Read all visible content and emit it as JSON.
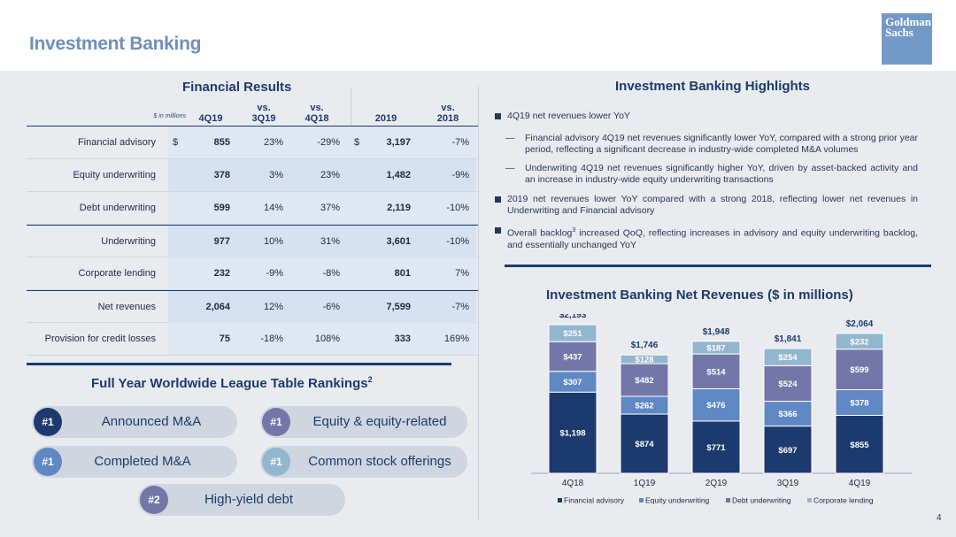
{
  "header": {
    "title": "Investment Banking",
    "logo_text": "Goldman Sachs"
  },
  "financial_results": {
    "title": "Financial Results",
    "columns": {
      "units": "$ in millions",
      "c1": "4Q19",
      "c2": "vs. 3Q19",
      "c3": "vs. 4Q18",
      "c4": "2019",
      "c5": "vs. 2018"
    },
    "rows": [
      {
        "label": "Financial advisory",
        "d1": "$",
        "v1": "855",
        "v2": "23%",
        "v3": "-29%",
        "d4": "$",
        "v4": "3,197",
        "v5": "-7%"
      },
      {
        "label": "Equity underwriting",
        "d1": "",
        "v1": "378",
        "v2": "3%",
        "v3": "23%",
        "d4": "",
        "v4": "1,482",
        "v5": "-9%"
      },
      {
        "label": "Debt underwriting",
        "d1": "",
        "v1": "599",
        "v2": "14%",
        "v3": "37%",
        "d4": "",
        "v4": "2,119",
        "v5": "-10%"
      },
      {
        "label": "Underwriting",
        "d1": "",
        "v1": "977",
        "v2": "10%",
        "v3": "31%",
        "d4": "",
        "v4": "3,601",
        "v5": "-10%"
      },
      {
        "label": "Corporate lending",
        "d1": "",
        "v1": "232",
        "v2": "-9%",
        "v3": "-8%",
        "d4": "",
        "v4": "801",
        "v5": "7%"
      },
      {
        "label": "Net revenues",
        "d1": "",
        "v1": "2,064",
        "v2": "12%",
        "v3": "-6%",
        "d4": "",
        "v4": "7,599",
        "v5": "-7%"
      },
      {
        "label": "Provision for credit losses",
        "d1": "",
        "v1": "75",
        "v2": "-18%",
        "v3": "108%",
        "d4": "",
        "v4": "333",
        "v5": "169%"
      }
    ]
  },
  "rankings": {
    "title": "Full Year Worldwide League Table Rankings",
    "title_sup": "2",
    "items": [
      {
        "rank": "#1",
        "label": "Announced M&A"
      },
      {
        "rank": "#1",
        "label": "Equity & equity-related"
      },
      {
        "rank": "#1",
        "label": "Completed M&A"
      },
      {
        "rank": "#1",
        "label": "Common stock offerings"
      },
      {
        "rank": "#2",
        "label": "High-yield debt"
      }
    ]
  },
  "highlights": {
    "title": "Investment Banking Highlights",
    "b1": "4Q19 net revenues lower YoY",
    "s1": "Financial advisory 4Q19 net revenues significantly lower YoY, compared with a strong prior year period, reflecting a significant decrease in industry-wide completed M&A volumes",
    "s2": "Underwriting 4Q19 net revenues significantly higher YoY, driven by asset-backed activity and an increase in industry-wide equity underwriting transactions",
    "b2": "2019 net revenues lower YoY compared with a strong 2018, reflecting lower net revenues in Underwriting and Financial advisory",
    "b3_pre": "Overall backlog",
    "b3_sup": "3",
    "b3_post": " increased QoQ, reflecting increases in advisory and equity underwriting backlog, and essentially unchanged YoY",
    "dash": "—"
  },
  "chart_data": {
    "type": "bar",
    "stacked": true,
    "title": "Investment Banking Net Revenues ($ in millions)",
    "categories": [
      "4Q18",
      "1Q19",
      "2Q19",
      "3Q19",
      "4Q19"
    ],
    "series": [
      {
        "name": "Financial advisory",
        "color": "#1d3a6e",
        "values": [
          1198,
          874,
          771,
          697,
          855
        ]
      },
      {
        "name": "Equity underwriting",
        "color": "#5f88c4",
        "values": [
          307,
          262,
          476,
          366,
          378
        ]
      },
      {
        "name": "Debt underwriting",
        "color": "#7476a8",
        "values": [
          437,
          482,
          514,
          524,
          599
        ]
      },
      {
        "name": "Corporate lending",
        "color": "#93b6cf",
        "values": [
          251,
          128,
          187,
          254,
          232
        ]
      }
    ],
    "totals": [
      2193,
      1746,
      1948,
      1841,
      2064
    ],
    "value_labels": [
      [
        "$1,198",
        "$307",
        "$437",
        "$251"
      ],
      [
        "$874",
        "$262",
        "$482",
        "$128"
      ],
      [
        "$771",
        "$476",
        "$514",
        "$187"
      ],
      [
        "$697",
        "$366",
        "$524",
        "$254"
      ],
      [
        "$855",
        "$378",
        "$599",
        "$232"
      ]
    ],
    "total_labels": [
      "$2,193",
      "$1,746",
      "$1,948",
      "$1,841",
      "$2,064"
    ],
    "legend_labels": [
      "Financial advisory",
      "Equity underwriting",
      "Debt underwriting",
      "Corporate lending"
    ],
    "legend_position": "bottom"
  },
  "page_number": "4"
}
